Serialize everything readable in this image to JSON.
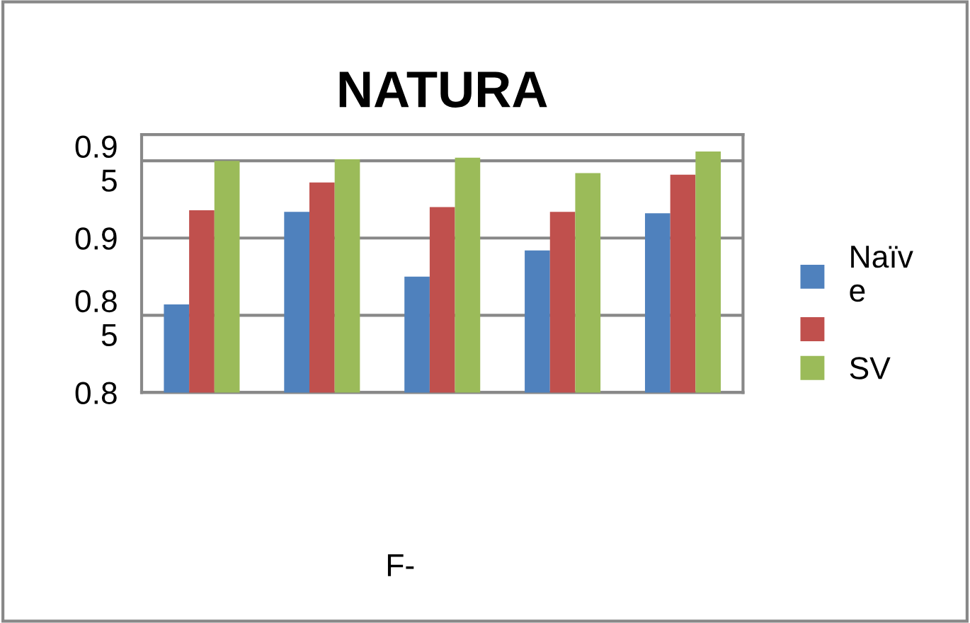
{
  "chart_data": {
    "type": "bar",
    "title": "NATURA",
    "annotations": [
      "F-"
    ],
    "categories": [
      null,
      null,
      null,
      null,
      null
    ],
    "series": [
      {
        "name": "Naïv\ne",
        "color": "#4f81bd",
        "values": [
          0.857,
          0.917,
          0.875,
          0.892,
          0.916
        ]
      },
      {
        "color": "#c0504d",
        "values": [
          0.918,
          0.936,
          0.92,
          0.917,
          0.941
        ]
      },
      {
        "name": "SV",
        "color": "#9bbb59",
        "values": [
          0.95,
          0.951,
          0.952,
          0.942,
          0.956
        ]
      }
    ],
    "ylim": [
      0.8,
      0.967
    ],
    "yticks": [
      0.8,
      {
        "value": 0.85,
        "label": "0.8\n5"
      },
      0.9,
      {
        "value": 0.95,
        "label": "0.9\n5"
      }
    ],
    "grid": "y",
    "legend": "right"
  }
}
